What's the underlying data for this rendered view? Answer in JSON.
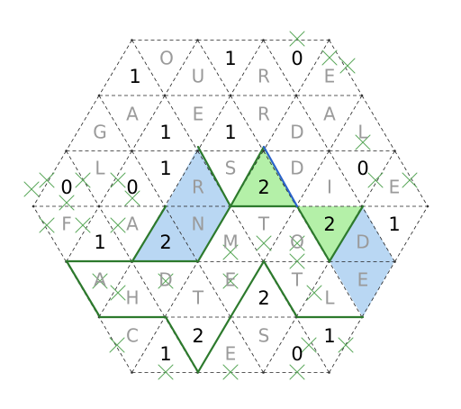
{
  "colors": {
    "letter": "#9a9a9a",
    "digit": "#000000",
    "blue_fill": "#b9d7f3",
    "green_fill": "#b4f0a8",
    "loop_line": "#2d7a2d",
    "blue_line": "#2a62c9",
    "cross": "#5aa85a"
  },
  "letters": [
    {
      "t": "O"
    },
    {
      "t": "U"
    },
    {
      "t": "R"
    },
    {
      "t": "E"
    },
    {
      "t": "A"
    },
    {
      "t": "E"
    },
    {
      "t": "R"
    },
    {
      "t": "A"
    },
    {
      "t": "G"
    },
    {
      "t": "D"
    },
    {
      "t": "L"
    },
    {
      "t": "L"
    },
    {
      "t": "S"
    },
    {
      "t": "D"
    },
    {
      "t": "R"
    },
    {
      "t": "I"
    },
    {
      "t": "E"
    },
    {
      "t": "F"
    },
    {
      "t": "A"
    },
    {
      "t": "N"
    },
    {
      "t": "T"
    },
    {
      "t": "M"
    },
    {
      "t": "O"
    },
    {
      "t": "D"
    },
    {
      "t": "A"
    },
    {
      "t": "D"
    },
    {
      "t": "E"
    },
    {
      "t": "T"
    },
    {
      "t": "E"
    },
    {
      "t": "H"
    },
    {
      "t": "T"
    },
    {
      "t": "L"
    },
    {
      "t": "C"
    },
    {
      "t": "S"
    },
    {
      "t": "E"
    }
  ],
  "digits": [
    {
      "t": "1"
    },
    {
      "t": "1"
    },
    {
      "t": "0"
    },
    {
      "t": "1"
    },
    {
      "t": "1"
    },
    {
      "t": "1"
    },
    {
      "t": "0"
    },
    {
      "t": "0"
    },
    {
      "t": "0"
    },
    {
      "t": "2"
    },
    {
      "t": "2"
    },
    {
      "t": "1"
    },
    {
      "t": "1"
    },
    {
      "t": "2"
    },
    {
      "t": "2"
    },
    {
      "t": "2"
    },
    {
      "t": "1"
    },
    {
      "t": "1"
    },
    {
      "t": "0"
    }
  ]
}
